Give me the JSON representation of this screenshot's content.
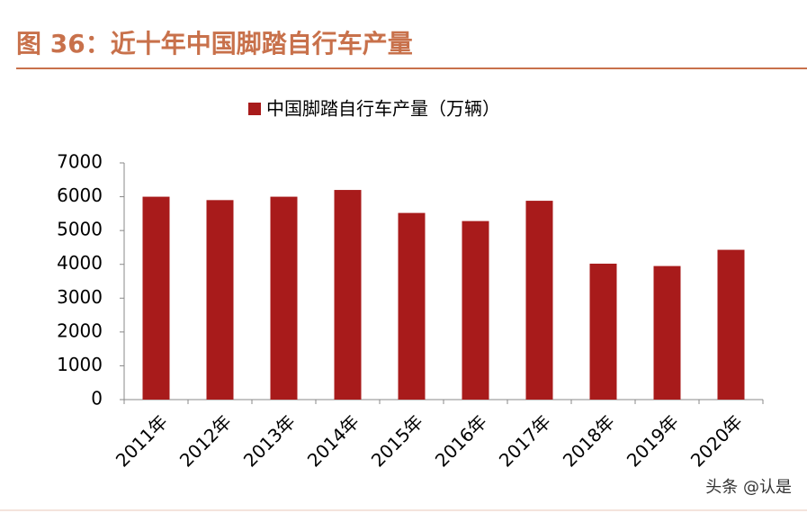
{
  "chart_data": {
    "type": "bar",
    "title": "图 36：近十年中国脚踏自行车产量",
    "legend": "中国脚踏自行车产量（万辆）",
    "watermark": "头条 @认是",
    "categories": [
      "2011年",
      "2012年",
      "2013年",
      "2014年",
      "2015年",
      "2016年",
      "2017年",
      "2018年",
      "2019年",
      "2020年"
    ],
    "values": [
      6000,
      5900,
      6000,
      6200,
      5520,
      5280,
      5880,
      4020,
      3950,
      4430
    ],
    "color": "#a81b1b",
    "ylim": [
      0,
      7000
    ],
    "yticks": [
      0,
      1000,
      2000,
      3000,
      4000,
      5000,
      6000,
      7000
    ],
    "grid": false
  }
}
